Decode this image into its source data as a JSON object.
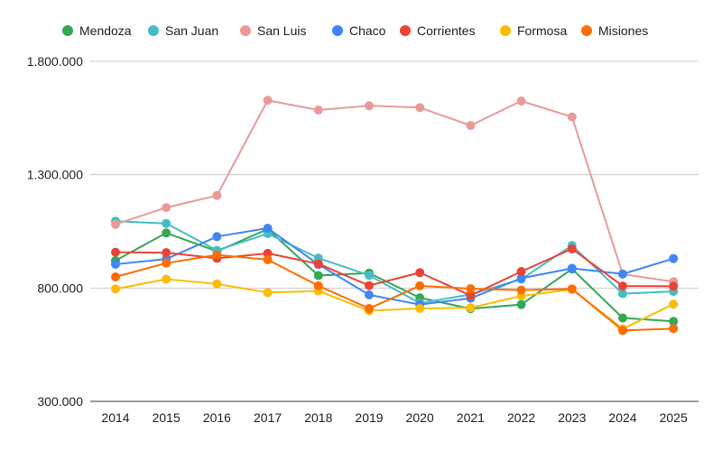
{
  "chart_data": {
    "type": "line",
    "title": "",
    "xlabel": "",
    "ylabel": "",
    "categories": [
      "2014",
      "2015",
      "2016",
      "2017",
      "2018",
      "2019",
      "2020",
      "2021",
      "2022",
      "2023",
      "2024",
      "2025"
    ],
    "ylim": [
      300000,
      1800000
    ],
    "yticks": [
      300000,
      800000,
      1300000,
      1800000
    ],
    "ytick_labels": [
      "300.000",
      "800.000",
      "1.300.000",
      "1.800.000"
    ],
    "grid": true,
    "legend_position": "top",
    "series": [
      {
        "name": "Mendoza",
        "color": "#34a853",
        "values": [
          921000,
          1043000,
          962000,
          1060000,
          855000,
          866000,
          757000,
          709000,
          727000,
          884000,
          668000,
          653000
        ]
      },
      {
        "name": "San Juan",
        "color": "#46bdc6",
        "values": [
          1095000,
          1085000,
          966000,
          1040000,
          932000,
          856000,
          733000,
          772000,
          839000,
          988000,
          775000,
          785000
        ]
      },
      {
        "name": "San Luis",
        "color": "#ea9999",
        "values": [
          1081000,
          1155000,
          1208000,
          1628000,
          1585000,
          1604000,
          1596000,
          1517000,
          1625000,
          1555000,
          861000,
          828000
        ]
      },
      {
        "name": "Chaco",
        "color": "#4285f4",
        "values": [
          905000,
          928000,
          1027000,
          1064000,
          904000,
          770000,
          727000,
          755000,
          843000,
          887000,
          862000,
          930000
        ]
      },
      {
        "name": "Corrientes",
        "color": "#ea4335",
        "values": [
          958000,
          956000,
          931000,
          953000,
          907000,
          811000,
          868000,
          767000,
          873000,
          973000,
          809000,
          808000
        ]
      },
      {
        "name": "Formosa",
        "color": "#fbbc04",
        "values": [
          796000,
          839000,
          818000,
          780000,
          787000,
          700000,
          710000,
          713000,
          765000,
          794000,
          620000,
          729000
        ]
      },
      {
        "name": "Misiones",
        "color": "#ff6d01",
        "values": [
          849000,
          910000,
          946000,
          925000,
          810000,
          710000,
          810000,
          797000,
          791000,
          796000,
          613000,
          621000
        ]
      }
    ]
  }
}
